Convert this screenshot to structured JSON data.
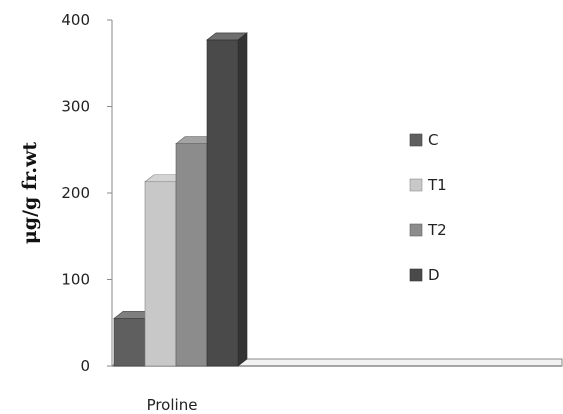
{
  "chart_data": {
    "type": "bar",
    "categories": [
      "Proline"
    ],
    "series": [
      {
        "name": "C",
        "values": [
          55
        ],
        "color": "#5f5f5f"
      },
      {
        "name": "T1",
        "values": [
          213
        ],
        "color": "#c8c8c8"
      },
      {
        "name": "T2",
        "values": [
          257
        ],
        "color": "#8c8c8c"
      },
      {
        "name": "D",
        "values": [
          377
        ],
        "color": "#4a4a4a"
      }
    ],
    "title": "",
    "xlabel": "",
    "ylabel": "μg/g fr.wt",
    "ylim": [
      0,
      400
    ],
    "yticks": [
      "0",
      "100",
      "200",
      "300",
      "400"
    ],
    "grid": false,
    "legend": "right",
    "three_d": true
  }
}
